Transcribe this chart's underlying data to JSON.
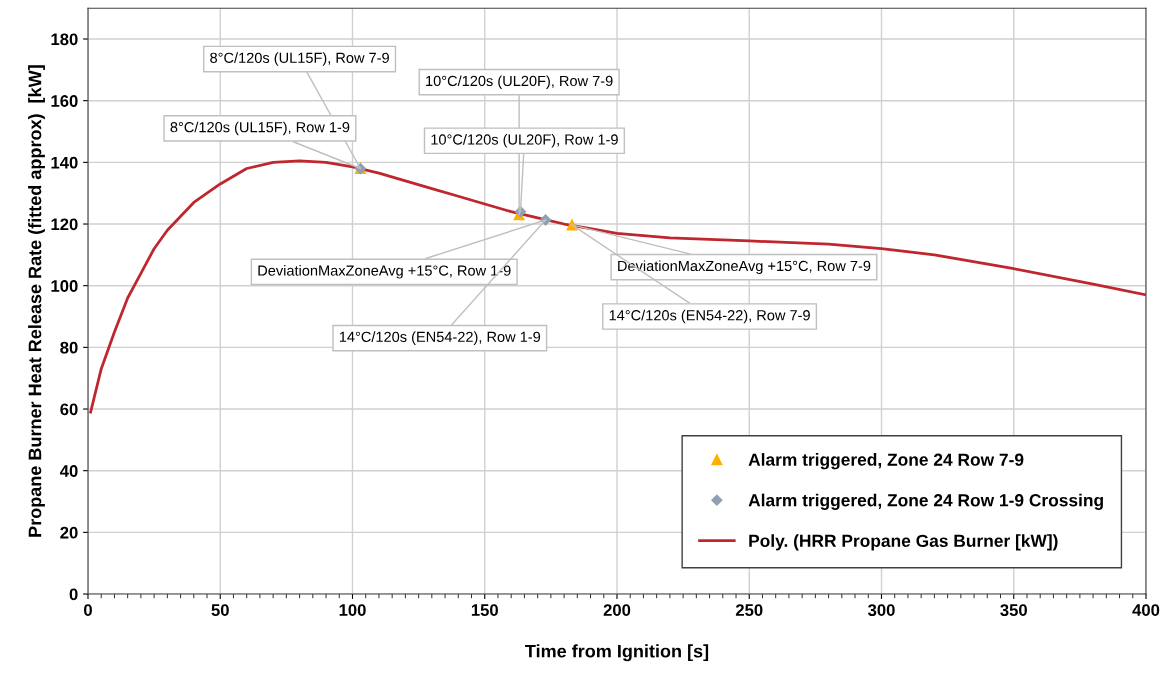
{
  "chart_data": {
    "type": "line",
    "xlabel": "Time from Ignition [s]",
    "ylabel": "Propane Burner Heat Release Rate (fitted approx)  [kW]",
    "series": [
      {
        "name": "Alarm triggered, Zone 24 Row 7-9",
        "type": "scatter",
        "marker": "triangle",
        "color": "#ffb000",
        "x": [
          103,
          163,
          183
        ],
        "values": [
          138,
          123,
          119.7
        ]
      },
      {
        "name": "Alarm triggered, Zone 24 Row 1-9 Crossing",
        "type": "scatter",
        "marker": "diamond",
        "color": "#8ea0b4",
        "x": [
          103,
          163.5,
          173
        ],
        "values": [
          138,
          124,
          121.3
        ]
      },
      {
        "name": "Poly. (HRR Propane Gas Burner [kW])",
        "marker": "none",
        "color": "#c0262d",
        "x": [
          1,
          5,
          10,
          15,
          20,
          25,
          30,
          40,
          50,
          60,
          70,
          80,
          90,
          100,
          110,
          120,
          130,
          140,
          150,
          160,
          170,
          180,
          190,
          200,
          220,
          250,
          280,
          300,
          320,
          350,
          380,
          400
        ],
        "values": [
          59,
          73,
          85,
          96,
          104,
          112,
          118,
          127,
          133,
          138,
          140,
          140.5,
          140,
          138.5,
          136.5,
          134,
          131.5,
          129,
          126.5,
          124,
          122,
          120,
          118.5,
          117,
          115.5,
          114.5,
          113.5,
          112,
          110,
          105.5,
          100.5,
          97
        ]
      }
    ],
    "annotations": [
      {
        "text": "8°C/120s (UL15F), Row 7-9",
        "x": 103,
        "y": 138
      },
      {
        "text": "8°C/120s (UL15F), Row 1-9",
        "x": 103,
        "y": 138
      },
      {
        "text": "10°C/120s (UL20F), Row 7-9",
        "x": 163,
        "y": 123
      },
      {
        "text": "10°C/120s (UL20F), Row 1-9",
        "x": 163.5,
        "y": 124
      },
      {
        "text": "DeviationMaxZoneAvg +15°C, Row 1-9",
        "x": 173,
        "y": 121.3
      },
      {
        "text": "14°C/120s (EN54-22), Row 1-9",
        "x": 173,
        "y": 121.3
      },
      {
        "text": "DeviationMaxZoneAvg +15°C, Row 7-9",
        "x": 183,
        "y": 119.7
      },
      {
        "text": "14°C/120s (EN54-22), Row 7-9",
        "x": 183,
        "y": 119.7
      }
    ],
    "xlim": [
      0,
      400
    ],
    "ylim": [
      0,
      190
    ],
    "xticks": [
      0,
      50,
      100,
      150,
      200,
      250,
      300,
      350,
      400
    ],
    "yticks": [
      0,
      20,
      40,
      60,
      80,
      100,
      120,
      140,
      160,
      180
    ],
    "grid": true,
    "legend": "bottom right"
  }
}
